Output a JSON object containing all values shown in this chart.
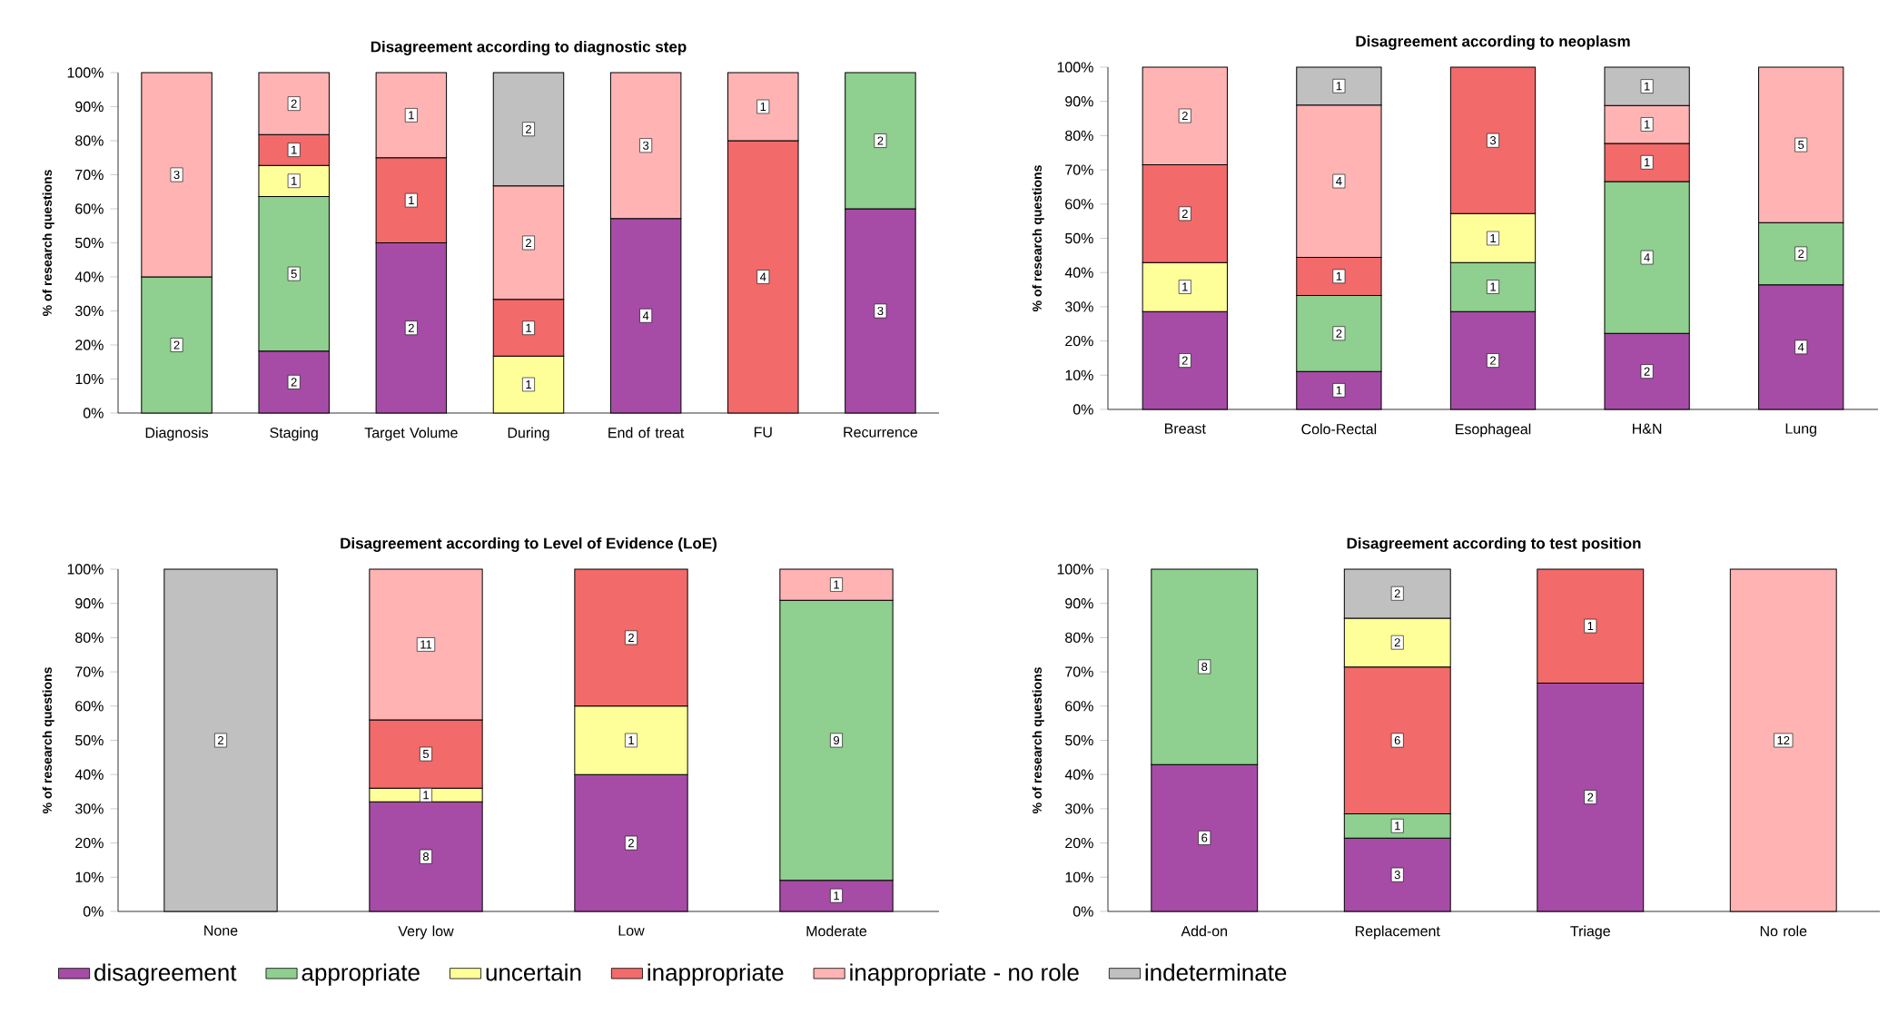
{
  "chart_data": [
    {
      "type": "bar",
      "stacked": true,
      "title": "Disagreement according to diagnostic step",
      "ylabel": "% of research questions",
      "categories": [
        "Diagnosis",
        "Staging",
        "Target Volume",
        "During",
        "End of treat",
        "FU",
        "Recurrence"
      ],
      "ylim": [
        0,
        100
      ],
      "yticks": [
        {
          "value": 0,
          "label": "0%"
        },
        {
          "value": 10,
          "label": "10%"
        },
        {
          "value": 20,
          "label": "20%"
        },
        {
          "value": 30,
          "label": "30%"
        },
        {
          "value": 40,
          "label": "40%"
        },
        {
          "value": 50,
          "label": "50%"
        },
        {
          "value": 60,
          "label": "60%"
        },
        {
          "value": 70,
          "label": "70%"
        },
        {
          "value": 80,
          "label": "80%"
        },
        {
          "value": 90,
          "label": "90%"
        },
        {
          "value": 100,
          "label": "100%"
        }
      ],
      "series": [
        {
          "color": "#a64ca6",
          "values": [
            null,
            18.2,
            50,
            null,
            57.1,
            null,
            60
          ]
        },
        {
          "color": "#8fcf8f",
          "values": [
            40,
            45.4,
            null,
            null,
            null,
            null,
            40
          ]
        },
        {
          "color": "#ffff99",
          "values": [
            null,
            9.1,
            null,
            16.7,
            null,
            null,
            null
          ]
        },
        {
          "color": "#f26a6a",
          "values": [
            null,
            9.1,
            25,
            16.7,
            null,
            80,
            null
          ]
        },
        {
          "color": "#ffb3b3",
          "values": [
            60,
            18.2,
            25,
            33.3,
            42.9,
            20,
            null
          ]
        },
        {
          "color": "#c0c0c0",
          "values": [
            null,
            null,
            null,
            33.3,
            null,
            null,
            null
          ]
        }
      ],
      "annotations": [
        {
          "text": "2",
          "x": "Diagnosis",
          "y": 20
        },
        {
          "text": "3",
          "x": "Diagnosis",
          "y": 70
        },
        {
          "text": "2",
          "x": "Staging",
          "y": 9.1
        },
        {
          "text": "5",
          "x": "Staging",
          "y": 40.9
        },
        {
          "text": "1",
          "x": "Staging",
          "y": 68.2
        },
        {
          "text": "1",
          "x": "Staging",
          "y": 77.3
        },
        {
          "text": "2",
          "x": "Staging",
          "y": 90.9
        },
        {
          "text": "2",
          "x": "Target Volume",
          "y": 25
        },
        {
          "text": "1",
          "x": "Target Volume",
          "y": 62.5
        },
        {
          "text": "1",
          "x": "Target Volume",
          "y": 87.5
        },
        {
          "text": "1",
          "x": "During",
          "y": 8.4
        },
        {
          "text": "1",
          "x": "During",
          "y": 25
        },
        {
          "text": "2",
          "x": "During",
          "y": 50
        },
        {
          "text": "2",
          "x": "During",
          "y": 83.4
        },
        {
          "text": "4",
          "x": "End of treat",
          "y": 28.6
        },
        {
          "text": "3",
          "x": "End of treat",
          "y": 78.6
        },
        {
          "text": "4",
          "x": "FU",
          "y": 40
        },
        {
          "text": "1",
          "x": "FU",
          "y": 90
        },
        {
          "text": "3",
          "x": "Recurrence",
          "y": 30
        },
        {
          "text": "2",
          "x": "Recurrence",
          "y": 80
        }
      ]
    },
    {
      "type": "bar",
      "stacked": true,
      "title": "Disagreement according to neoplasm",
      "ylabel": "% of research questions",
      "categories": [
        "Breast",
        "Colo-Rectal",
        "Esophageal",
        "H&N",
        "Lung"
      ],
      "ylim": [
        0,
        100
      ],
      "yticks": [
        {
          "value": 0,
          "label": "0%"
        },
        {
          "value": 10,
          "label": "10%"
        },
        {
          "value": 20,
          "label": "20%"
        },
        {
          "value": 30,
          "label": "30%"
        },
        {
          "value": 40,
          "label": "40%"
        },
        {
          "value": 50,
          "label": "50%"
        },
        {
          "value": 60,
          "label": "60%"
        },
        {
          "value": 70,
          "label": "70%"
        },
        {
          "value": 80,
          "label": "80%"
        },
        {
          "value": 90,
          "label": "90%"
        },
        {
          "value": 100,
          "label": "100%"
        }
      ],
      "series": [
        {
          "color": "#a64ca6",
          "values": [
            28.6,
            11.1,
            28.6,
            22.2,
            36.4
          ]
        },
        {
          "color": "#8fcf8f",
          "values": [
            null,
            22.2,
            14.3,
            44.4,
            18.2
          ]
        },
        {
          "color": "#ffff99",
          "values": [
            14.3,
            null,
            14.3,
            null,
            null
          ]
        },
        {
          "color": "#f26a6a",
          "values": [
            28.6,
            11.1,
            42.8,
            11.1,
            null
          ]
        },
        {
          "color": "#ffb3b3",
          "values": [
            28.5,
            44.5,
            null,
            11.1,
            45.4
          ]
        },
        {
          "color": "#c0c0c0",
          "values": [
            null,
            11.1,
            null,
            11.2,
            null
          ]
        }
      ],
      "annotations": [
        {
          "text": "2",
          "x": "Breast",
          "y": 14.3
        },
        {
          "text": "1",
          "x": "Breast",
          "y": 35.8
        },
        {
          "text": "2",
          "x": "Breast",
          "y": 57.2
        },
        {
          "text": "2",
          "x": "Breast",
          "y": 85.8
        },
        {
          "text": "1",
          "x": "Colo-Rectal",
          "y": 5.6
        },
        {
          "text": "2",
          "x": "Colo-Rectal",
          "y": 22.2
        },
        {
          "text": "1",
          "x": "Colo-Rectal",
          "y": 38.9
        },
        {
          "text": "4",
          "x": "Colo-Rectal",
          "y": 66.7
        },
        {
          "text": "1",
          "x": "Colo-Rectal",
          "y": 94.5
        },
        {
          "text": "2",
          "x": "Esophageal",
          "y": 14.3
        },
        {
          "text": "1",
          "x": "Esophageal",
          "y": 35.8
        },
        {
          "text": "1",
          "x": "Esophageal",
          "y": 50
        },
        {
          "text": "3",
          "x": "Esophageal",
          "y": 78.6
        },
        {
          "text": "2",
          "x": "H&N",
          "y": 11.1
        },
        {
          "text": "4",
          "x": "H&N",
          "y": 44.4
        },
        {
          "text": "1",
          "x": "H&N",
          "y": 72.2
        },
        {
          "text": "1",
          "x": "H&N",
          "y": 83.3
        },
        {
          "text": "1",
          "x": "H&N",
          "y": 94.4
        },
        {
          "text": "4",
          "x": "Lung",
          "y": 18.2
        },
        {
          "text": "2",
          "x": "Lung",
          "y": 45.5
        },
        {
          "text": "5",
          "x": "Lung",
          "y": 77.3
        }
      ]
    },
    {
      "type": "bar",
      "stacked": true,
      "title": "Disagreement according to Level of Evidence (LoE)",
      "ylabel": "% of research questions",
      "legend": "bottom",
      "categories": [
        "None",
        "Very low",
        "Low",
        "Moderate"
      ],
      "ylim": [
        0,
        100
      ],
      "yticks": [
        {
          "value": 0,
          "label": "0%"
        },
        {
          "value": 10,
          "label": "10%"
        },
        {
          "value": 20,
          "label": "20%"
        },
        {
          "value": 30,
          "label": "30%"
        },
        {
          "value": 40,
          "label": "40%"
        },
        {
          "value": 50,
          "label": "50%"
        },
        {
          "value": 60,
          "label": "60%"
        },
        {
          "value": 70,
          "label": "70%"
        },
        {
          "value": 80,
          "label": "80%"
        },
        {
          "value": 90,
          "label": "90%"
        },
        {
          "value": 100,
          "label": "100%"
        }
      ],
      "series": [
        {
          "name": "disagreement",
          "color": "#a64ca6",
          "values": [
            null,
            32,
            40,
            9.1
          ]
        },
        {
          "name": "appropriate",
          "color": "#8fcf8f",
          "values": [
            null,
            null,
            null,
            81.8
          ]
        },
        {
          "name": "uncertain",
          "color": "#ffff99",
          "values": [
            null,
            4,
            20,
            null
          ]
        },
        {
          "name": "inappropriate",
          "color": "#f26a6a",
          "values": [
            null,
            20,
            40,
            null
          ]
        },
        {
          "name": "inappropriate - no role",
          "color": "#ffb3b3",
          "values": [
            null,
            44,
            null,
            9.1
          ]
        },
        {
          "name": "indeterminate",
          "color": "#c0c0c0",
          "values": [
            100,
            null,
            null,
            null
          ]
        }
      ],
      "annotations": [
        {
          "text": "2",
          "x": "None",
          "y": 50
        },
        {
          "text": "8",
          "x": "Very low",
          "y": 16
        },
        {
          "text": "1",
          "x": "Very low",
          "y": 34
        },
        {
          "text": "5",
          "x": "Very low",
          "y": 46
        },
        {
          "text": "11",
          "x": "Very low",
          "y": 78
        },
        {
          "text": "2",
          "x": "Low",
          "y": 20
        },
        {
          "text": "1",
          "x": "Low",
          "y": 50
        },
        {
          "text": "2",
          "x": "Low",
          "y": 80
        },
        {
          "text": "1",
          "x": "Moderate",
          "y": 4.6
        },
        {
          "text": "9",
          "x": "Moderate",
          "y": 50
        },
        {
          "text": "1",
          "x": "Moderate",
          "y": 95.5
        }
      ]
    },
    {
      "type": "bar",
      "stacked": true,
      "title": "Disagreement according to test position",
      "ylabel": "% of research questions",
      "categories": [
        "Add-on",
        "Replacement",
        "Triage",
        "No role"
      ],
      "ylim": [
        0,
        100
      ],
      "yticks": [
        {
          "value": 0,
          "label": "0%"
        },
        {
          "value": 10,
          "label": "10%"
        },
        {
          "value": 20,
          "label": "20%"
        },
        {
          "value": 30,
          "label": "30%"
        },
        {
          "value": 40,
          "label": "40%"
        },
        {
          "value": 50,
          "label": "50%"
        },
        {
          "value": 60,
          "label": "60%"
        },
        {
          "value": 70,
          "label": "70%"
        },
        {
          "value": 80,
          "label": "80%"
        },
        {
          "value": 90,
          "label": "90%"
        },
        {
          "value": 100,
          "label": "100%"
        }
      ],
      "series": [
        {
          "color": "#a64ca6",
          "values": [
            42.9,
            21.4,
            66.7,
            null
          ]
        },
        {
          "color": "#8fcf8f",
          "values": [
            57.1,
            7.1,
            null,
            null
          ]
        },
        {
          "color": "#f26a6a",
          "values": [
            null,
            42.9,
            33.3,
            null
          ]
        },
        {
          "color": "#ffff99",
          "values": [
            null,
            14.3,
            null,
            null
          ]
        },
        {
          "color": "#ffb3b3",
          "values": [
            null,
            null,
            null,
            100
          ]
        },
        {
          "color": "#c0c0c0",
          "values": [
            null,
            14.3,
            null,
            null
          ]
        }
      ],
      "annotations": [
        {
          "text": "6",
          "x": "Add-on",
          "y": 21.5
        },
        {
          "text": "8",
          "x": "Add-on",
          "y": 71.5
        },
        {
          "text": "3",
          "x": "Replacement",
          "y": 10.7
        },
        {
          "text": "1",
          "x": "Replacement",
          "y": 25
        },
        {
          "text": "6",
          "x": "Replacement",
          "y": 50
        },
        {
          "text": "2",
          "x": "Replacement",
          "y": 78.6
        },
        {
          "text": "2",
          "x": "Replacement",
          "y": 92.9
        },
        {
          "text": "2",
          "x": "Triage",
          "y": 33.4
        },
        {
          "text": "1",
          "x": "Triage",
          "y": 83.4
        },
        {
          "text": "12",
          "x": "No role",
          "y": 50
        }
      ]
    }
  ]
}
